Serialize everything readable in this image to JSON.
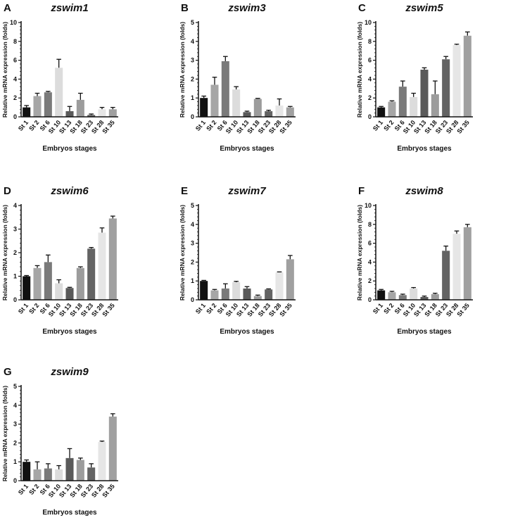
{
  "chart_data": [
    {
      "type": "bar",
      "panel": "A",
      "title": "zswim1",
      "x_label": "Embryos stages",
      "y_label": "Relative mRNA expression (folds)",
      "categories": [
        "St 1",
        "St 2",
        "St 6",
        "St 10",
        "St 13",
        "St 18",
        "St 23",
        "St 28",
        "St 35"
      ],
      "values": [
        1.0,
        2.2,
        2.6,
        5.2,
        0.6,
        1.8,
        0.2,
        0.8,
        0.8
      ],
      "errors": [
        0.2,
        0.3,
        0.1,
        0.9,
        0.5,
        0.7,
        0.1,
        0.2,
        0.2
      ],
      "colors": [
        "#111111",
        "#a6a6a6",
        "#7a7a7a",
        "#dcdcdc",
        "#5a5a5a",
        "#9c9c9c",
        "#636363",
        "#e6e6e6",
        "#a0a0a0"
      ],
      "ylim": [
        0,
        10
      ],
      "yticks": [
        0,
        2,
        4,
        6,
        8,
        10
      ]
    },
    {
      "type": "bar",
      "panel": "B",
      "title": "zswim3",
      "x_label": "Embryos stages",
      "y_label": "Relative mRNA expression (folds)",
      "categories": [
        "St 1",
        "St 2",
        "St 6",
        "St 10",
        "St 13",
        "St 18",
        "St 23",
        "St 28",
        "St 35"
      ],
      "values": [
        1.0,
        1.7,
        2.95,
        1.45,
        0.25,
        0.95,
        0.3,
        0.6,
        0.5
      ],
      "errors": [
        0.1,
        0.4,
        0.25,
        0.15,
        0.05,
        0.03,
        0.05,
        0.35,
        0.05
      ],
      "colors": [
        "#111111",
        "#a6a6a6",
        "#7a7a7a",
        "#dcdcdc",
        "#5a5a5a",
        "#9c9c9c",
        "#636363",
        "#e6e6e6",
        "#a0a0a0"
      ],
      "ylim": [
        0,
        5
      ],
      "yticks": [
        0,
        1,
        2,
        3,
        4,
        5
      ]
    },
    {
      "type": "bar",
      "panel": "C",
      "title": "zswim5",
      "x_label": "Embryos stages",
      "y_label": "Relative mRNA expression (folds)",
      "categories": [
        "St 1",
        "St 2",
        "St 6",
        "St 10",
        "St 13",
        "St 18",
        "St 23",
        "St 28",
        "St 35"
      ],
      "values": [
        1.0,
        1.6,
        3.2,
        2.1,
        5.0,
        2.4,
        6.1,
        7.6,
        8.6
      ],
      "errors": [
        0.1,
        0.1,
        0.6,
        0.4,
        0.2,
        1.4,
        0.3,
        0.1,
        0.4
      ],
      "colors": [
        "#111111",
        "#a6a6a6",
        "#7a7a7a",
        "#dcdcdc",
        "#5a5a5a",
        "#9c9c9c",
        "#636363",
        "#e6e6e6",
        "#a0a0a0"
      ],
      "ylim": [
        0,
        10
      ],
      "yticks": [
        0,
        2,
        4,
        6,
        8,
        10
      ]
    },
    {
      "type": "bar",
      "panel": "D",
      "title": "zswim6",
      "x_label": "Embryos stages",
      "y_label": "Relative mRNA expression (folds)",
      "categories": [
        "St 1",
        "St 2",
        "St 6",
        "St 10",
        "St 13",
        "St 18",
        "St 23",
        "St 28",
        "St 35"
      ],
      "values": [
        1.0,
        1.35,
        1.6,
        0.7,
        0.5,
        1.35,
        2.17,
        2.85,
        3.45
      ],
      "errors": [
        0.03,
        0.1,
        0.3,
        0.15,
        0.03,
        0.05,
        0.05,
        0.2,
        0.1
      ],
      "colors": [
        "#111111",
        "#a6a6a6",
        "#7a7a7a",
        "#dcdcdc",
        "#5a5a5a",
        "#9c9c9c",
        "#636363",
        "#e6e6e6",
        "#a0a0a0"
      ],
      "ylim": [
        0,
        4
      ],
      "yticks": [
        0,
        1,
        2,
        3,
        4
      ]
    },
    {
      "type": "bar",
      "panel": "E",
      "title": "zswim7",
      "x_label": "Embryos stages",
      "y_label": "Relative mRNA expression (folds)",
      "categories": [
        "St 1",
        "St 2",
        "St 6",
        "St 10",
        "St 13",
        "St 18",
        "St 23",
        "St 28",
        "St 35"
      ],
      "values": [
        1.0,
        0.5,
        0.6,
        0.93,
        0.6,
        0.2,
        0.55,
        1.45,
        2.15
      ],
      "errors": [
        0.03,
        0.05,
        0.25,
        0.05,
        0.1,
        0.05,
        0.03,
        0.03,
        0.2
      ],
      "colors": [
        "#111111",
        "#a6a6a6",
        "#7a7a7a",
        "#dcdcdc",
        "#5a5a5a",
        "#9c9c9c",
        "#636363",
        "#e6e6e6",
        "#a0a0a0"
      ],
      "ylim": [
        0,
        5
      ],
      "yticks": [
        0,
        1,
        2,
        3,
        4,
        5
      ]
    },
    {
      "type": "bar",
      "panel": "F",
      "title": "zswim8",
      "x_label": "Embryos stages",
      "y_label": "Relative mRNA expression (folds)",
      "categories": [
        "St 1",
        "St 2",
        "St 6",
        "St 10",
        "St 13",
        "St 18",
        "St 23",
        "St 28",
        "St 35"
      ],
      "values": [
        1.0,
        0.8,
        0.5,
        1.2,
        0.3,
        0.6,
        5.2,
        7.0,
        7.7
      ],
      "errors": [
        0.1,
        0.1,
        0.1,
        0.1,
        0.1,
        0.1,
        0.5,
        0.3,
        0.3
      ],
      "colors": [
        "#111111",
        "#a6a6a6",
        "#7a7a7a",
        "#dcdcdc",
        "#5a5a5a",
        "#9c9c9c",
        "#636363",
        "#e6e6e6",
        "#a0a0a0"
      ],
      "ylim": [
        0,
        10
      ],
      "yticks": [
        0,
        2,
        4,
        6,
        8,
        10
      ]
    },
    {
      "type": "bar",
      "panel": "G",
      "title": "zswim9",
      "x_label": "Embryos stages",
      "y_label": "Relative mRNA expression (folds)",
      "categories": [
        "St 1",
        "St 2",
        "St 6",
        "St 10",
        "St 13",
        "St 18",
        "St 23",
        "St 28",
        "St 35"
      ],
      "values": [
        1.0,
        0.6,
        0.65,
        0.6,
        1.2,
        1.1,
        0.7,
        2.05,
        3.4
      ],
      "errors": [
        0.1,
        0.4,
        0.25,
        0.2,
        0.5,
        0.1,
        0.2,
        0.05,
        0.15
      ],
      "colors": [
        "#111111",
        "#a6a6a6",
        "#7a7a7a",
        "#dcdcdc",
        "#5a5a5a",
        "#9c9c9c",
        "#636363",
        "#e6e6e6",
        "#a0a0a0"
      ],
      "ylim": [
        0,
        5
      ],
      "yticks": [
        0,
        1,
        2,
        3,
        4,
        5
      ]
    }
  ]
}
